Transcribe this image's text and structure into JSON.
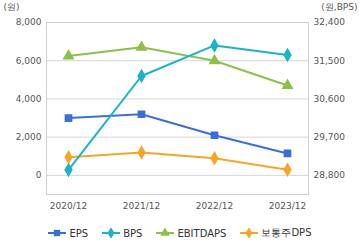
{
  "chart_data": {
    "type": "line",
    "ylabel": "(원)",
    "y2label": "(원,BPS)",
    "categories": [
      "2020/12",
      "2021/12",
      "2022/12",
      "2023/12"
    ],
    "series": [
      {
        "name": "EPS",
        "color": "#3a6fd8",
        "marker": "square",
        "values": [
          3000,
          3200,
          2100,
          1150
        ]
      },
      {
        "name": "BPS",
        "color": "#1bb3c8",
        "marker": "diamond",
        "axis": "y2",
        "values": [
          28930,
          31140,
          31860,
          31635
        ]
      },
      {
        "name": "EBITDAPS",
        "color": "#8dc04b",
        "marker": "triangle",
        "values": [
          6250,
          6700,
          6000,
          4700
        ]
      },
      {
        "name": "보통주DPS",
        "color": "#f5a62a",
        "marker": "diamond",
        "values": [
          950,
          1200,
          900,
          300
        ]
      }
    ],
    "ylim": [
      -1000,
      8000
    ],
    "yticks": [
      0,
      {
        "value": 2000,
        "label": "2,000"
      },
      {
        "value": 4000,
        "label": "4,000"
      },
      {
        "value": 6000,
        "label": "6,000"
      },
      {
        "value": 8000,
        "label": "8,000"
      }
    ],
    "y2lim": [
      28350,
      32400
    ],
    "y2ticks": [
      {
        "value": 28800,
        "label": "28,800"
      },
      {
        "value": 29700,
        "label": "29,700"
      },
      {
        "value": 30600,
        "label": "30,600"
      },
      {
        "value": 31500,
        "label": "31,500"
      },
      {
        "value": 32400,
        "label": "32,400"
      }
    ],
    "grid": true,
    "legend": "bottom"
  }
}
